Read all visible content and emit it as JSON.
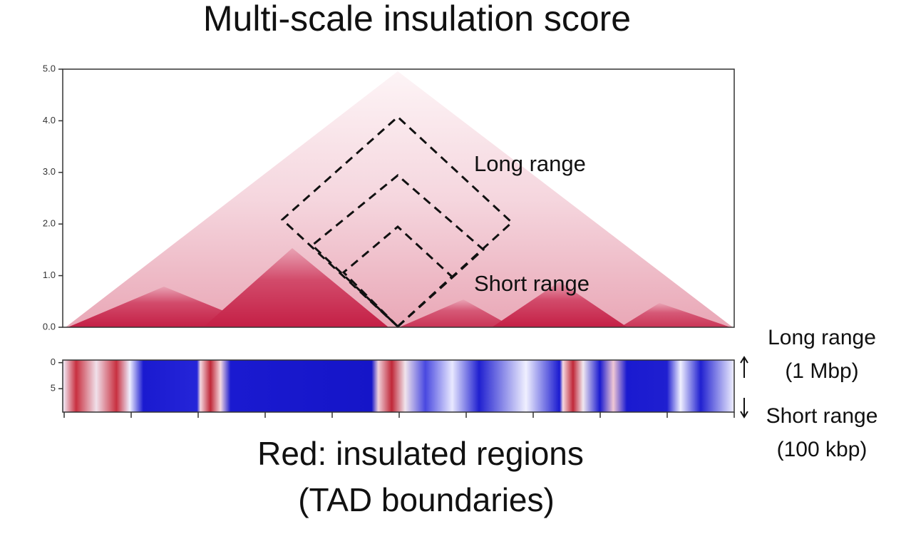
{
  "chart_data": [
    {
      "type": "heatmap",
      "title": "Multi-scale insulation score",
      "ylim": [
        0,
        5
      ],
      "yticks": [
        {
          "value": 0,
          "label": "0.0"
        },
        {
          "value": 1,
          "label": "1.0"
        },
        {
          "value": 2,
          "label": "2.0"
        },
        {
          "value": 3,
          "label": "3.0"
        },
        {
          "value": 4,
          "label": "4.0"
        },
        {
          "value": 5,
          "label": "5.0"
        }
      ],
      "annotations": [
        "Long range",
        "Short range"
      ]
    },
    {
      "type": "heatmap",
      "ylim": [
        -0.5,
        9.5
      ],
      "yticks": [
        0,
        5
      ],
      "side_labels": [
        "Long range",
        "(1 Mbp)",
        "Short range",
        "(100 kbp)"
      ]
    }
  ],
  "caption": [
    "Red: insulated regions",
    "(TAD boundaries)"
  ]
}
